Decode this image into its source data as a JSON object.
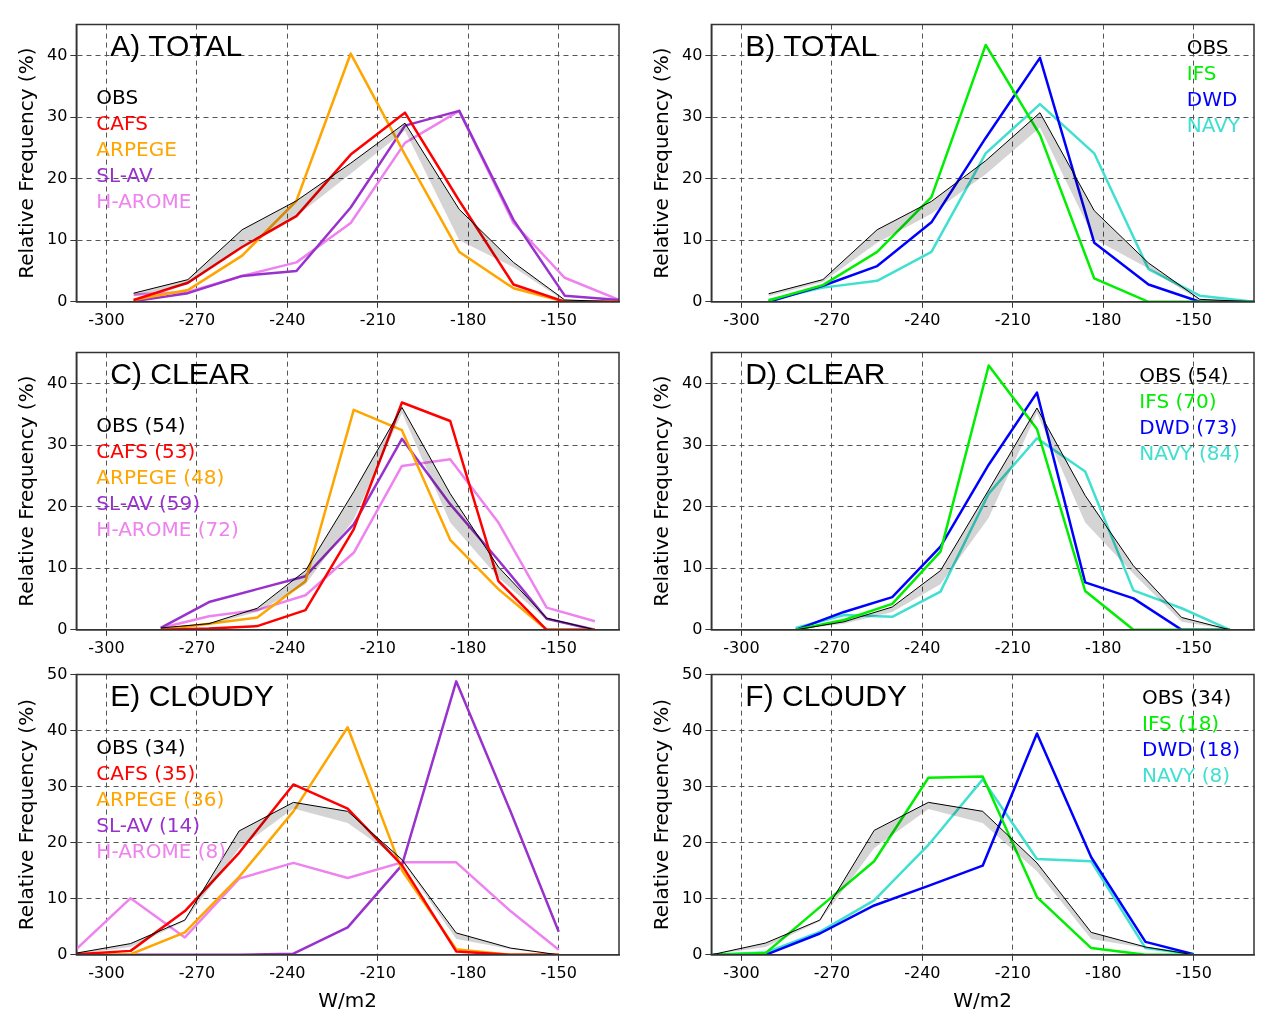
{
  "chart_data": [
    {
      "type": "line",
      "title": "A) TOTAL",
      "ylabel": "Relative Frequency (%)",
      "x": [
        -291,
        -273,
        -255,
        -237,
        -219,
        -201,
        -183,
        -165,
        -148,
        -130
      ],
      "xlim": [
        -310,
        -130
      ],
      "xticks": [
        -300,
        -270,
        -240,
        -210,
        -180,
        -150
      ],
      "ylim": [
        0,
        45
      ],
      "yticks": [
        0,
        10,
        20,
        30,
        40
      ],
      "grid": true,
      "legend": "top left",
      "series": [
        {
          "name": "OBS",
          "color": "#000000",
          "values": [
            1.4,
            3.6,
            11.7,
            16.4,
            22.5,
            29,
            15,
            6.4,
            0.3,
            0
          ],
          "lower": [
            0.8,
            2.8,
            8.9,
            13.9,
            20.8,
            27.8,
            10,
            5.6,
            0.1,
            0
          ],
          "upper": [
            1.4,
            3.6,
            11.7,
            16.4,
            22.5,
            29,
            15,
            6.4,
            0.3,
            0
          ]
        },
        {
          "name": "CAFS",
          "color": "#ff0000",
          "values": [
            0.3,
            3.1,
            8.9,
            13.9,
            23.9,
            30.7,
            16.4,
            2.8,
            0,
            0
          ]
        },
        {
          "name": "ARPEGE",
          "color": "#ffa500",
          "values": [
            0.3,
            1.9,
            7.5,
            16.4,
            40.3,
            23.9,
            8.1,
            2.2,
            0,
            0
          ]
        },
        {
          "name": "SL-AV",
          "color": "#9932cc",
          "values": [
            0.1,
            1.4,
            4.2,
            5,
            15.3,
            28.6,
            31,
            13.3,
            1,
            0.3
          ]
        },
        {
          "name": "H-AROME",
          "color": "#ee82ee",
          "values": [
            1.2,
            1.6,
            4.2,
            6.4,
            12.8,
            25.8,
            31,
            12.8,
            3.9,
            0.3
          ]
        }
      ]
    },
    {
      "type": "line",
      "title": "B) TOTAL",
      "ylabel": "Relative Frequency (%)",
      "x": [
        -291,
        -273,
        -255,
        -237,
        -219,
        -201,
        -183,
        -165,
        -148,
        -130
      ],
      "xlim": [
        -310,
        -130
      ],
      "xticks": [
        -300,
        -270,
        -240,
        -210,
        -180,
        -150
      ],
      "ylim": [
        0,
        45
      ],
      "yticks": [
        0,
        10,
        20,
        30,
        40
      ],
      "grid": true,
      "legend": "top right",
      "series": [
        {
          "name": "OBS",
          "color": "#000000",
          "values": [
            1.3,
            3.6,
            11.7,
            16.3,
            22.9,
            30.7,
            14.8,
            6.3,
            0.4,
            0
          ],
          "lower": [
            0.9,
            3.2,
            9.6,
            14.3,
            20.7,
            28.3,
            10.2,
            5.4,
            0.2,
            0
          ],
          "upper": [
            1.3,
            3.6,
            11.7,
            16.3,
            22.9,
            30.7,
            14.8,
            6.3,
            0.4,
            0
          ]
        },
        {
          "name": "IFS",
          "color": "#00ee00",
          "values": [
            0.2,
            2.7,
            8.1,
            17,
            41.7,
            27.1,
            3.8,
            0,
            0,
            0
          ]
        },
        {
          "name": "DWD",
          "color": "#0000ff",
          "values": [
            0,
            2.6,
            5.8,
            12.9,
            26.6,
            39.6,
            9.6,
            2.8,
            0,
            0
          ]
        },
        {
          "name": "NAVY",
          "color": "#40e0d0",
          "values": [
            0.3,
            2.3,
            3.4,
            8.1,
            24.1,
            32.1,
            24.1,
            5.3,
            1,
            0
          ]
        }
      ]
    },
    {
      "type": "line",
      "title": "C) CLEAR",
      "ylabel": "Relative Frequency (%)",
      "x": [
        -282,
        -266,
        -250,
        -234,
        -218,
        -202,
        -186,
        -170,
        -154,
        -138
      ],
      "xlim": [
        -310,
        -130
      ],
      "xticks": [
        -300,
        -270,
        -240,
        -210,
        -180,
        -150
      ],
      "ylim": [
        0,
        45
      ],
      "yticks": [
        0,
        10,
        20,
        30,
        40
      ],
      "grid": true,
      "legend": "top left",
      "series": [
        {
          "name": "OBS (54)",
          "color": "#000000",
          "values": [
            0.3,
            1,
            3.5,
            9.6,
            22.4,
            36.1,
            22.1,
            10.2,
            1.9,
            0
          ],
          "lower": [
            0.2,
            0.8,
            2.9,
            7.4,
            17.9,
            35.2,
            17.4,
            8.5,
            1.6,
            0
          ],
          "upper": [
            0.3,
            1,
            3.5,
            9.6,
            22.4,
            36.1,
            22.1,
            10.2,
            1.9,
            0
          ]
        },
        {
          "name": "CAFS (53)",
          "color": "#ff0000",
          "values": [
            0,
            0.2,
            0.6,
            3.2,
            16.3,
            36.9,
            33.9,
            7.9,
            0,
            0
          ]
        },
        {
          "name": "ARPEGE (48)",
          "color": "#ffa500",
          "values": [
            0,
            1,
            2,
            7.9,
            35.7,
            32.4,
            14.6,
            6.6,
            0,
            0
          ]
        },
        {
          "name": "SL-AV (59)",
          "color": "#9932cc",
          "values": [
            0.3,
            4.5,
            6.6,
            8.7,
            17.1,
            31,
            20.4,
            11.3,
            1.8,
            0
          ]
        },
        {
          "name": "H-AROME (72)",
          "color": "#ee82ee",
          "values": [
            0.3,
            2.2,
            3.2,
            5.6,
            12.5,
            26.6,
            27.7,
            17.4,
            3.6,
            1.4
          ]
        }
      ]
    },
    {
      "type": "line",
      "title": "D) CLEAR",
      "ylabel": "Relative Frequency (%)",
      "x": [
        -282,
        -266,
        -250,
        -234,
        -218,
        -202,
        -186,
        -170,
        -154,
        -138
      ],
      "xlim": [
        -310,
        -130
      ],
      "xticks": [
        -300,
        -270,
        -240,
        -210,
        -180,
        -150
      ],
      "ylim": [
        0,
        45
      ],
      "yticks": [
        0,
        10,
        20,
        30,
        40
      ],
      "grid": true,
      "legend": "top right",
      "series": [
        {
          "name": "OBS (54)",
          "color": "#000000",
          "values": [
            0,
            1.3,
            3.7,
            9.6,
            22.7,
            36,
            21.8,
            10.4,
            2,
            0
          ],
          "lower": [
            0,
            1,
            2.9,
            7.4,
            18.2,
            35.2,
            17.4,
            9.1,
            1.3,
            0
          ],
          "upper": [
            0,
            1.3,
            3.7,
            9.6,
            22.7,
            36,
            21.8,
            10.4,
            2,
            0
          ]
        },
        {
          "name": "IFS (70)",
          "color": "#00ee00",
          "values": [
            0,
            1.6,
            4.2,
            12.7,
            42.9,
            32.6,
            6.3,
            0,
            0,
            0
          ]
        },
        {
          "name": "DWD (73)",
          "color": "#0000ff",
          "values": [
            0,
            2.9,
            5.3,
            13.5,
            26.8,
            38.5,
            7.7,
            5.1,
            0,
            0
          ]
        },
        {
          "name": "NAVY (84)",
          "color": "#40e0d0",
          "values": [
            0.3,
            2.4,
            2.1,
            6.2,
            22.1,
            31.1,
            25.7,
            6.4,
            3.5,
            0
          ]
        }
      ]
    },
    {
      "type": "line",
      "title": "E) CLOUDY",
      "xlabel": "W/m2",
      "ylabel": "Relative Frequency (%)",
      "x": [
        -310,
        -292,
        -274,
        -256,
        -238,
        -220,
        -202,
        -184,
        -166,
        -150
      ],
      "xlim": [
        -310,
        -130
      ],
      "xticks": [
        -300,
        -270,
        -240,
        -210,
        -180,
        -150
      ],
      "ylim": [
        0,
        50
      ],
      "yticks": [
        0,
        10,
        20,
        30,
        40,
        50
      ],
      "grid": true,
      "legend": "top left",
      "series": [
        {
          "name": "OBS (34)",
          "color": "#000000",
          "values": [
            0.3,
            2,
            6.2,
            22.1,
            27.2,
            25.6,
            17,
            3.9,
            1.2,
            0
          ],
          "lower": [
            0.1,
            1.4,
            6,
            19,
            26.1,
            23.5,
            16.7,
            2.8,
            1,
            0
          ],
          "upper": [
            0.3,
            2,
            6.2,
            22.1,
            27.2,
            25.6,
            17,
            3.9,
            1.2,
            0
          ]
        },
        {
          "name": "CAFS (35)",
          "color": "#ff0000",
          "values": [
            0.1,
            0.7,
            7.8,
            18.2,
            30.4,
            26.1,
            16,
            0.6,
            0,
            0
          ]
        },
        {
          "name": "ARPEGE (36)",
          "color": "#ffa500",
          "values": [
            0,
            0.1,
            4,
            13.9,
            25.6,
            40.6,
            15.1,
            1,
            0,
            0
          ]
        },
        {
          "name": "SL-AV (14)",
          "color": "#9932cc",
          "values": [
            0,
            0,
            0,
            0,
            0.2,
            4.9,
            16,
            48.8,
            25.6,
            4.1
          ]
        },
        {
          "name": "H-AROME (8)",
          "color": "#ee82ee",
          "values": [
            1,
            10.1,
            3.1,
            13.6,
            16.4,
            13.7,
            16.5,
            16.5,
            7.8,
            0.9
          ]
        }
      ]
    },
    {
      "type": "line",
      "title": "F) CLOUDY",
      "xlabel": "W/m2",
      "ylabel": "Relative Frequency (%)",
      "x": [
        -310,
        -292,
        -274,
        -256,
        -238,
        -220,
        -202,
        -184,
        -166,
        -150
      ],
      "xlim": [
        -310,
        -130
      ],
      "xticks": [
        -300,
        -270,
        -240,
        -210,
        -180,
        -150
      ],
      "ylim": [
        0,
        50
      ],
      "yticks": [
        0,
        10,
        20,
        30,
        40,
        50
      ],
      "grid": true,
      "legend": "top right",
      "series": [
        {
          "name": "OBS (34)",
          "color": "#000000",
          "values": [
            0,
            2.1,
            6.2,
            22.2,
            27.2,
            25.6,
            16.4,
            4,
            1.4,
            0
          ],
          "lower": [
            0,
            1.4,
            6,
            19,
            26,
            23.5,
            14.9,
            2.8,
            1.2,
            0
          ],
          "upper": [
            0,
            2.1,
            6.2,
            22.2,
            27.2,
            25.6,
            16.4,
            4,
            1.4,
            0
          ]
        },
        {
          "name": "IFS (18)",
          "color": "#00ee00",
          "values": [
            0,
            0.3,
            8.5,
            16.7,
            31.6,
            31.8,
            10.3,
            1.2,
            0,
            0
          ]
        },
        {
          "name": "DWD (18)",
          "color": "#0000ff",
          "values": [
            0,
            0,
            3.8,
            8.8,
            12.3,
            15.9,
            39.5,
            17.4,
            2.3,
            0.1
          ]
        },
        {
          "name": "NAVY (8)",
          "color": "#40e0d0",
          "values": [
            0,
            0.4,
            4.1,
            9.7,
            19.6,
            31.3,
            17.1,
            16.7,
            1.2,
            0.1
          ]
        }
      ]
    }
  ]
}
